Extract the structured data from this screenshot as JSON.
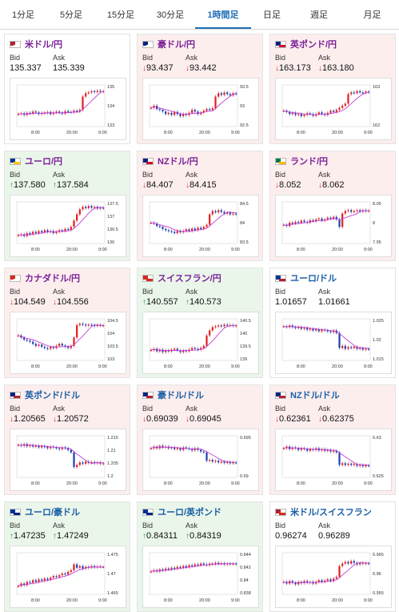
{
  "tabs": [
    {
      "label": "1分足",
      "active": false
    },
    {
      "label": "5分足",
      "active": false
    },
    {
      "label": "15分足",
      "active": false
    },
    {
      "label": "30分足",
      "active": false
    },
    {
      "label": "1時間足",
      "active": true
    },
    {
      "label": "日足",
      "active": false
    },
    {
      "label": "週足",
      "active": false
    },
    {
      "label": "月足",
      "active": false
    }
  ],
  "labels": {
    "bid": "Bid",
    "ask": "Ask"
  },
  "colors": {
    "up_bg": "#eaf6ea",
    "down_bg": "#fdeeee",
    "candle_up": "#e02020",
    "candle_down": "#1f3fae",
    "ma": "#c43fd6",
    "up_arrow": "#1c9e3e",
    "down_arrow": "#d92a2a",
    "title_cross": "#7a1f99",
    "title_usd": "#1a5fa5"
  },
  "pairs": [
    {
      "name": "米ドル/円",
      "state": "flat",
      "title_style": "cross",
      "flags": [
        "#b22234",
        "#ffffff"
      ],
      "bid": "135.337",
      "ask": "135.339",
      "dir": "none",
      "xticks": [
        "8:00",
        "20:00",
        "9:00"
      ],
      "yticks": [
        "135",
        "134",
        "133"
      ],
      "trend": [
        0.3,
        0.32,
        0.28,
        0.33,
        0.31,
        0.36,
        0.34,
        0.3,
        0.33,
        0.32,
        0.35,
        0.3,
        0.34,
        0.36,
        0.33,
        0.31,
        0.37,
        0.35,
        0.34,
        0.38,
        0.36,
        0.4,
        0.72,
        0.8,
        0.82,
        0.85,
        0.83,
        0.86,
        0.84,
        0.85
      ]
    },
    {
      "name": "豪ドル/円",
      "state": "down",
      "title_style": "cross",
      "flags": [
        "#00247d",
        "#ffffff"
      ],
      "bid": "93.437",
      "ask": "93.442",
      "dir": "down",
      "xticks": [
        "8:00",
        "20:00",
        "9:00"
      ],
      "yticks": [
        "93.5",
        "93",
        "92.5"
      ],
      "trend": [
        0.45,
        0.5,
        0.42,
        0.4,
        0.36,
        0.3,
        0.33,
        0.28,
        0.35,
        0.3,
        0.25,
        0.3,
        0.28,
        0.33,
        0.4,
        0.36,
        0.3,
        0.34,
        0.38,
        0.42,
        0.4,
        0.44,
        0.72,
        0.8,
        0.76,
        0.82,
        0.78,
        0.75,
        0.8,
        0.78
      ]
    },
    {
      "name": "英ポンド/円",
      "state": "down",
      "title_style": "cross",
      "flags": [
        "#00247d",
        "#cf142b"
      ],
      "bid": "163.173",
      "ask": "163.180",
      "dir": "down",
      "xticks": [
        "8:00",
        "20:00",
        "9:00"
      ],
      "yticks": [
        "163",
        "162"
      ],
      "trend": [
        0.38,
        0.35,
        0.3,
        0.33,
        0.28,
        0.3,
        0.25,
        0.28,
        0.32,
        0.3,
        0.26,
        0.3,
        0.34,
        0.3,
        0.28,
        0.33,
        0.38,
        0.35,
        0.4,
        0.45,
        0.5,
        0.55,
        0.78,
        0.82,
        0.8,
        0.85,
        0.82,
        0.8,
        0.84,
        0.82
      ]
    },
    {
      "name": "ユーロ/円",
      "state": "up",
      "title_style": "cross",
      "flags": [
        "#003399",
        "#ffcc00"
      ],
      "bid": "137.580",
      "ask": "137.584",
      "dir": "up",
      "xticks": [
        "8:00",
        "20:00",
        "9:00"
      ],
      "yticks": [
        "137.5",
        "137",
        "136.5",
        "136"
      ],
      "trend": [
        0.2,
        0.22,
        0.18,
        0.25,
        0.22,
        0.28,
        0.25,
        0.3,
        0.27,
        0.32,
        0.28,
        0.3,
        0.25,
        0.28,
        0.32,
        0.3,
        0.35,
        0.33,
        0.4,
        0.55,
        0.7,
        0.82,
        0.88,
        0.85,
        0.9,
        0.86,
        0.88,
        0.84,
        0.86,
        0.85
      ]
    },
    {
      "name": "NZドル/円",
      "state": "down",
      "title_style": "cross",
      "flags": [
        "#00247d",
        "#cc142b"
      ],
      "bid": "84.407",
      "ask": "84.415",
      "dir": "down",
      "xticks": [
        "8:00",
        "20:00",
        "9:00"
      ],
      "yticks": [
        "84.5",
        "84",
        "83.5"
      ],
      "trend": [
        0.5,
        0.48,
        0.42,
        0.4,
        0.35,
        0.32,
        0.3,
        0.28,
        0.25,
        0.3,
        0.27,
        0.3,
        0.34,
        0.3,
        0.36,
        0.32,
        0.38,
        0.35,
        0.4,
        0.45,
        0.7,
        0.78,
        0.75,
        0.8,
        0.76,
        0.72,
        0.74,
        0.7,
        0.72,
        0.7
      ]
    },
    {
      "name": "ランド/円",
      "state": "down",
      "title_style": "cross",
      "flags": [
        "#007a4d",
        "#ffb612"
      ],
      "bid": "8.052",
      "ask": "8.062",
      "dir": "down",
      "xticks": [
        "8:00",
        "20:00",
        "9:00"
      ],
      "yticks": [
        "8.05",
        "8",
        "7.95"
      ],
      "trend": [
        0.45,
        0.42,
        0.5,
        0.48,
        0.52,
        0.5,
        0.55,
        0.52,
        0.5,
        0.56,
        0.54,
        0.58,
        0.6,
        0.55,
        0.58,
        0.62,
        0.6,
        0.64,
        0.58,
        0.4,
        0.72,
        0.78,
        0.8,
        0.76,
        0.78,
        0.8,
        0.77,
        0.8,
        0.78,
        0.79
      ]
    },
    {
      "name": "カナダドル/円",
      "state": "down",
      "title_style": "cross",
      "flags": [
        "#d52b1e",
        "#ffffff"
      ],
      "bid": "104.549",
      "ask": "104.556",
      "dir": "down",
      "xticks": [
        "8:00",
        "20:00",
        "9:00"
      ],
      "yticks": [
        "104.5",
        "104",
        "103.5",
        "103"
      ],
      "trend": [
        0.6,
        0.55,
        0.5,
        0.48,
        0.45,
        0.4,
        0.35,
        0.38,
        0.33,
        0.3,
        0.28,
        0.32,
        0.3,
        0.35,
        0.4,
        0.36,
        0.33,
        0.3,
        0.35,
        0.55,
        0.85,
        0.88,
        0.86,
        0.84,
        0.86,
        0.85,
        0.83,
        0.85,
        0.84,
        0.84
      ]
    },
    {
      "name": "スイスフラン/円",
      "state": "up",
      "title_style": "cross",
      "flags": [
        "#d52b1e",
        "#d52b1e"
      ],
      "bid": "140.557",
      "ask": "140.573",
      "dir": "up",
      "xticks": [
        "8:00",
        "20:00",
        "9:00"
      ],
      "yticks": [
        "140.5",
        "140",
        "139.5",
        "139"
      ],
      "trend": [
        0.25,
        0.28,
        0.22,
        0.26,
        0.2,
        0.24,
        0.22,
        0.26,
        0.28,
        0.24,
        0.2,
        0.24,
        0.22,
        0.26,
        0.3,
        0.28,
        0.26,
        0.3,
        0.35,
        0.6,
        0.72,
        0.8,
        0.82,
        0.84,
        0.82,
        0.86,
        0.84,
        0.85,
        0.83,
        0.84
      ]
    },
    {
      "name": "ユーロ/ドル",
      "state": "flat",
      "title_style": "usd",
      "flags": [
        "#003399",
        "#b22234"
      ],
      "bid": "1.01657",
      "ask": "1.01661",
      "dir": "none",
      "xticks": [
        "8:00",
        "20:00",
        "9:00"
      ],
      "yticks": [
        "1.025",
        "1.02",
        "1.015"
      ],
      "trend": [
        0.82,
        0.8,
        0.84,
        0.8,
        0.78,
        0.8,
        0.76,
        0.78,
        0.74,
        0.76,
        0.72,
        0.75,
        0.7,
        0.74,
        0.72,
        0.7,
        0.68,
        0.72,
        0.66,
        0.3,
        0.35,
        0.28,
        0.32,
        0.3,
        0.33,
        0.28,
        0.3,
        0.26,
        0.28,
        0.27
      ]
    },
    {
      "name": "英ポンド/ドル",
      "state": "down",
      "title_style": "usd",
      "flags": [
        "#00247d",
        "#b22234"
      ],
      "bid": "1.20565",
      "ask": "1.20572",
      "dir": "down",
      "xticks": [
        "8:00",
        "20:00",
        "9:00"
      ],
      "yticks": [
        "1.215",
        "1.21",
        "1.205",
        "1.2"
      ],
      "trend": [
        0.78,
        0.76,
        0.8,
        0.75,
        0.78,
        0.74,
        0.76,
        0.72,
        0.75,
        0.73,
        0.7,
        0.74,
        0.72,
        0.7,
        0.68,
        0.72,
        0.7,
        0.66,
        0.6,
        0.25,
        0.3,
        0.36,
        0.33,
        0.38,
        0.35,
        0.37,
        0.34,
        0.36,
        0.33,
        0.34
      ]
    },
    {
      "name": "豪ドル/ドル",
      "state": "down",
      "title_style": "usd",
      "flags": [
        "#00247d",
        "#b22234"
      ],
      "bid": "0.69039",
      "ask": "0.69045",
      "dir": "down",
      "xticks": [
        "8:00",
        "20:00",
        "9:00"
      ],
      "yticks": [
        "0.695",
        "0.69"
      ],
      "trend": [
        0.7,
        0.74,
        0.7,
        0.76,
        0.72,
        0.74,
        0.7,
        0.72,
        0.68,
        0.7,
        0.66,
        0.72,
        0.7,
        0.68,
        0.65,
        0.7,
        0.66,
        0.62,
        0.6,
        0.4,
        0.42,
        0.38,
        0.4,
        0.36,
        0.38,
        0.35,
        0.37,
        0.34,
        0.36,
        0.35
      ]
    },
    {
      "name": "NZドル/ドル",
      "state": "down",
      "title_style": "usd",
      "flags": [
        "#00247d",
        "#b22234"
      ],
      "bid": "0.62361",
      "ask": "0.62375",
      "dir": "down",
      "xticks": [
        "8:00",
        "20:00",
        "9:00"
      ],
      "yticks": [
        "0.63",
        "0.625"
      ],
      "trend": [
        0.7,
        0.74,
        0.68,
        0.72,
        0.7,
        0.66,
        0.7,
        0.68,
        0.64,
        0.68,
        0.66,
        0.7,
        0.65,
        0.68,
        0.64,
        0.66,
        0.62,
        0.64,
        0.6,
        0.3,
        0.34,
        0.3,
        0.33,
        0.3,
        0.32,
        0.28,
        0.3,
        0.27,
        0.29,
        0.28
      ]
    },
    {
      "name": "ユーロ/豪ドル",
      "state": "up",
      "title_style": "usd",
      "flags": [
        "#003399",
        "#00247d"
      ],
      "bid": "1.47235",
      "ask": "1.47249",
      "dir": "up",
      "xticks": [
        "8:00",
        "20:00",
        "9:00"
      ],
      "yticks": [
        "1.475",
        "1.47",
        "1.465"
      ],
      "trend": [
        0.2,
        0.26,
        0.22,
        0.3,
        0.28,
        0.34,
        0.3,
        0.36,
        0.33,
        0.38,
        0.35,
        0.4,
        0.44,
        0.42,
        0.46,
        0.5,
        0.48,
        0.54,
        0.58,
        0.72,
        0.64,
        0.68,
        0.62,
        0.66,
        0.64,
        0.68,
        0.65,
        0.67,
        0.66,
        0.66
      ]
    },
    {
      "name": "ユーロ/英ポンド",
      "state": "up",
      "title_style": "usd",
      "flags": [
        "#003399",
        "#00247d"
      ],
      "bid": "0.84311",
      "ask": "0.84319",
      "dir": "up",
      "xticks": [
        "8:00",
        "20:00",
        "9:00"
      ],
      "yticks": [
        "0.844",
        "0.842",
        "0.84",
        "0.838"
      ],
      "trend": [
        0.55,
        0.58,
        0.55,
        0.6,
        0.58,
        0.62,
        0.6,
        0.64,
        0.62,
        0.66,
        0.64,
        0.68,
        0.65,
        0.7,
        0.68,
        0.72,
        0.7,
        0.74,
        0.72,
        0.7,
        0.74,
        0.72,
        0.76,
        0.73,
        0.75,
        0.72,
        0.74,
        0.73,
        0.74,
        0.73
      ]
    },
    {
      "name": "米ドル/スイスフラン",
      "state": "flat",
      "title_style": "usd",
      "flags": [
        "#b22234",
        "#d52b1e"
      ],
      "bid": "0.96274",
      "ask": "0.96289",
      "dir": "none",
      "xticks": [
        "8:00",
        "20:00",
        "9:00"
      ],
      "yticks": [
        "0.965",
        "0.96",
        "0.955"
      ],
      "trend": [
        0.3,
        0.26,
        0.32,
        0.28,
        0.24,
        0.3,
        0.27,
        0.32,
        0.28,
        0.3,
        0.26,
        0.3,
        0.34,
        0.3,
        0.33,
        0.36,
        0.32,
        0.38,
        0.42,
        0.68,
        0.74,
        0.78,
        0.74,
        0.8,
        0.76,
        0.72,
        0.76,
        0.74,
        0.75,
        0.74
      ]
    }
  ]
}
